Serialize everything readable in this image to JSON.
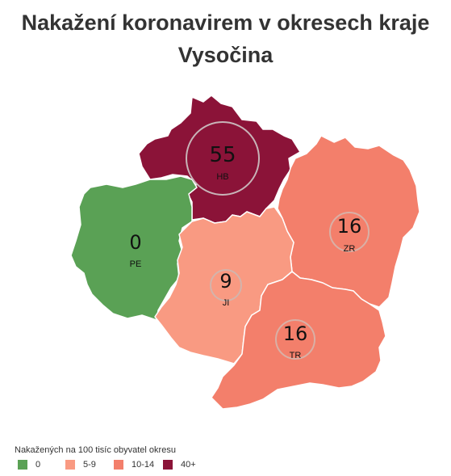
{
  "title": {
    "line1": "Nakažení koronavirem v okresech kraje",
    "line2": "Vysočina"
  },
  "districts": [
    {
      "code": "HB",
      "value": 55,
      "color": "#8b1338"
    },
    {
      "code": "PE",
      "value": 0,
      "color": "#5aa155"
    },
    {
      "code": "ZR",
      "value": 16,
      "color": "#f37f6b"
    },
    {
      "code": "JI",
      "value": 9,
      "color": "#f99a82"
    },
    {
      "code": "TR",
      "value": 16,
      "color": "#f37f6b"
    }
  ],
  "legend": {
    "title": "Nakažených na 100 tisíc obyvatel okresu",
    "items": [
      {
        "label": "0",
        "color": "#5aa155"
      },
      {
        "label": "5-9",
        "color": "#f99a82"
      },
      {
        "label": "10-14",
        "color": "#f37f6b"
      },
      {
        "label": "40+",
        "color": "#8b1338"
      }
    ]
  }
}
